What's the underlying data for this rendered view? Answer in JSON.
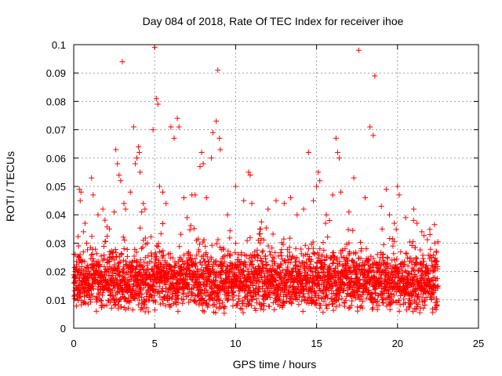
{
  "chart_data": {
    "type": "scatter",
    "title": "Day 084 of 2018, Rate Of TEC Index for receiver ihoe",
    "xlabel": "GPS time / hours",
    "ylabel": "ROTI / TECUs",
    "xlim": [
      0,
      25
    ],
    "ylim": [
      0,
      0.1
    ],
    "x_ticks": [
      "0",
      "5",
      "10",
      "15",
      "20",
      "25"
    ],
    "y_ticks": [
      "0",
      "0.01",
      "0.02",
      "0.03",
      "0.04",
      "0.05",
      "0.06",
      "0.07",
      "0.08",
      "0.09",
      "0.1"
    ],
    "grid": true,
    "marker": "+",
    "color": "#ff0000",
    "series": [
      {
        "x": [
          0.1,
          0.3,
          0.35,
          0.4,
          0.45,
          0.6,
          0.7,
          0.8,
          1.1,
          1.2,
          1.5,
          1.8,
          2.2,
          2.5,
          2.6,
          2.7,
          2.8,
          2.9,
          3.0,
          3.1,
          3.2,
          3.5,
          3.7,
          3.8,
          3.9,
          4.0,
          4.05,
          4.1,
          4.2,
          4.3,
          4.4,
          4.9,
          5.0,
          5.1,
          5.2,
          5.3,
          5.5,
          5.7,
          6.0,
          6.2,
          6.4,
          6.5,
          6.8,
          7.0,
          7.3,
          7.5,
          7.8,
          7.9,
          8.0,
          8.2,
          8.5,
          8.6,
          8.8,
          8.9,
          9.0,
          9.05,
          9.5,
          10.0,
          10.5,
          10.8,
          10.9,
          11.0,
          11.5,
          12.0,
          12.5,
          13.0,
          13.4,
          13.8,
          14.2,
          14.5,
          14.8,
          15.0,
          15.1,
          15.2,
          15.6,
          15.8,
          16.0,
          16.2,
          16.3,
          16.4,
          16.5,
          17.0,
          17.3,
          17.6,
          18.0,
          18.3,
          18.5,
          18.6,
          19.0,
          19.3,
          19.5,
          19.8,
          20.0,
          20.1,
          20.5,
          21.0,
          21.2,
          21.5,
          22.0,
          22.3
        ],
        "y": [
          0.026,
          0.029,
          0.049,
          0.045,
          0.048,
          0.034,
          0.037,
          0.03,
          0.053,
          0.047,
          0.04,
          0.042,
          0.035,
          0.041,
          0.063,
          0.058,
          0.054,
          0.052,
          0.094,
          0.044,
          0.042,
          0.048,
          0.071,
          0.058,
          0.06,
          0.064,
          0.062,
          0.055,
          0.041,
          0.044,
          0.042,
          0.07,
          0.099,
          0.081,
          0.079,
          0.05,
          0.048,
          0.044,
          0.071,
          0.067,
          0.074,
          0.071,
          0.046,
          0.039,
          0.047,
          0.047,
          0.057,
          0.062,
          0.058,
          0.046,
          0.06,
          0.069,
          0.073,
          0.091,
          0.067,
          0.063,
          0.04,
          0.05,
          0.045,
          0.055,
          0.054,
          0.044,
          0.035,
          0.042,
          0.045,
          0.044,
          0.046,
          0.04,
          0.042,
          0.062,
          0.045,
          0.05,
          0.055,
          0.052,
          0.04,
          0.038,
          0.047,
          0.067,
          0.062,
          0.06,
          0.048,
          0.041,
          0.053,
          0.098,
          0.046,
          0.071,
          0.068,
          0.089,
          0.043,
          0.049,
          0.04,
          0.037,
          0.05,
          0.047,
          0.039,
          0.042,
          0.037,
          0.034,
          0.033,
          0.03
        ]
      }
    ],
    "dense_band": {
      "x_range": [
        0,
        22.5
      ],
      "typical_range": [
        0.005,
        0.025
      ],
      "lower_envelope": 0.003
    }
  }
}
